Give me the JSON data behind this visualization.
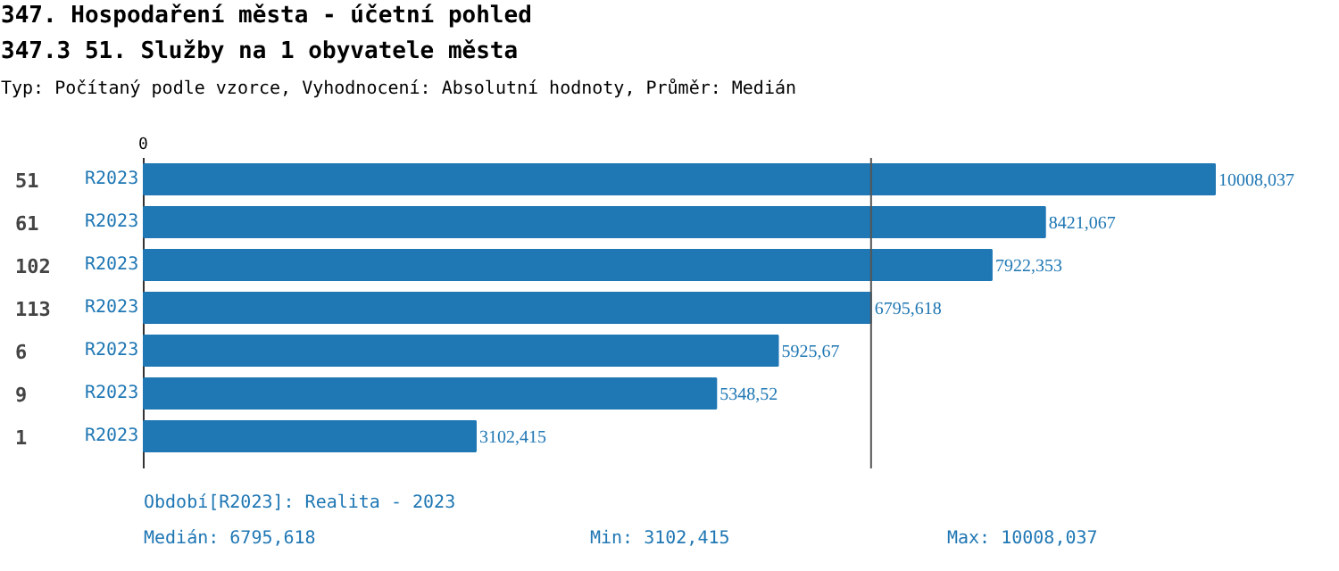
{
  "chart_data": {
    "type": "bar",
    "orientation": "horizontal",
    "title": "347. Hospodaření města - účetní pohled",
    "subtitle": "347.3 51. Služby na 1 obyvatele města",
    "categories": [
      "51",
      "61",
      "102",
      "113",
      "6",
      "9",
      "1"
    ],
    "series": [
      {
        "name": "R2023",
        "color": "#1f77b4",
        "values": [
          10008.037,
          8421.067,
          7922.353,
          6795.618,
          5925.67,
          5348.52,
          3102.415
        ],
        "value_labels": [
          "10008,037",
          "8421,067",
          "7922,353",
          "6795,618",
          "5925,67",
          "5348,52",
          "3102,415"
        ]
      }
    ],
    "grid": false,
    "legend": false,
    "ref_lines": [
      {
        "axis": "x",
        "value": 6795.618,
        "color": "#555555"
      }
    ],
    "annotations": [
      "Typ: Počítaný podle vzorce, Vyhodnocení: Absolutní hodnoty, Průměr: Medián",
      "0",
      "Období[R2023]: Realita - 2023",
      "Medián: 6795,618",
      "Min: 3102,415",
      "Max: 10008,037"
    ]
  }
}
